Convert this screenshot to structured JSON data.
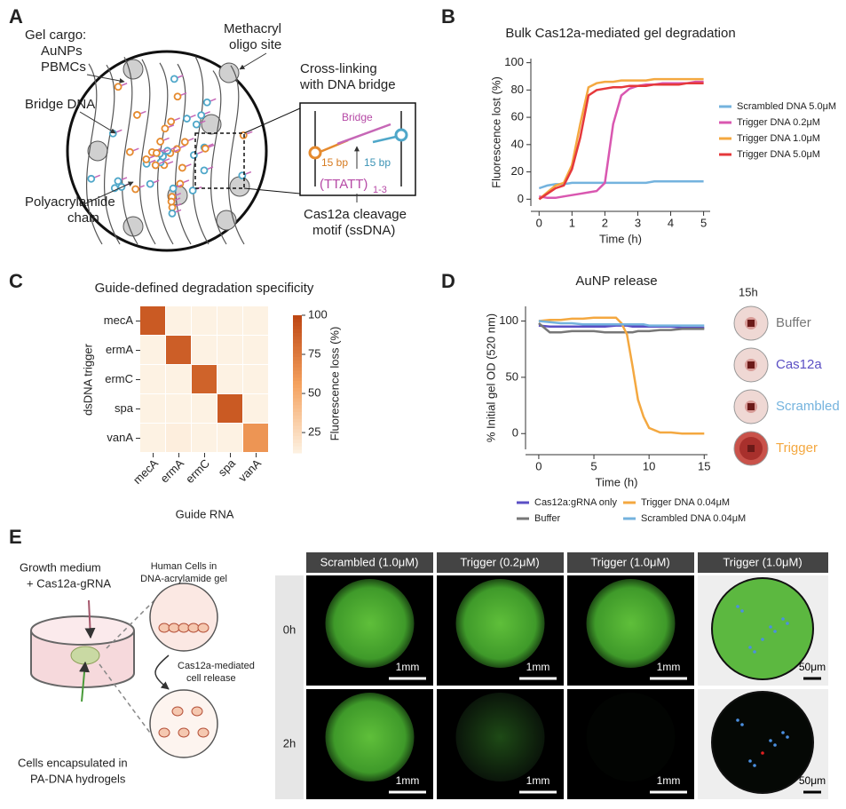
{
  "panel_labels": [
    "A",
    "B",
    "C",
    "D",
    "E"
  ],
  "panel_a": {
    "gel_cargo": [
      "Gel cargo:",
      "AuNPs",
      "PBMCs"
    ],
    "methacryl": [
      "Methacryl",
      "oligo site"
    ],
    "bridge_dna": "Bridge DNA",
    "chain": [
      "Polyacrylamide",
      "chain"
    ],
    "inset_title": [
      "Cross-linking",
      "with DNA bridge"
    ],
    "bridge": "Bridge",
    "bp_left": "15 bp",
    "bp_right": "15 bp",
    "motif": "(TTATT)",
    "motif_sub": "1-3",
    "cleavage": [
      "Cas12a cleavage",
      "motif (ssDNA)"
    ]
  },
  "chart_data": [
    {
      "type": "line",
      "title": "Bulk Cas12a-mediated gel degradation",
      "xlabel": "Time (h)",
      "ylabel": "Fluorescence lost (%)",
      "x": [
        0,
        0.25,
        0.5,
        0.75,
        1,
        1.25,
        1.5,
        1.75,
        2,
        2.25,
        2.5,
        2.75,
        3,
        3.25,
        3.5,
        3.75,
        4,
        4.25,
        4.5,
        4.75,
        5
      ],
      "xlim": [
        -0.25,
        5.2
      ],
      "xticks": [
        0,
        1,
        2,
        3,
        4,
        5
      ],
      "ylim": [
        -5,
        103
      ],
      "yticks": [
        0,
        20,
        40,
        60,
        80,
        100
      ],
      "legend": "right",
      "series": [
        {
          "name": "Scrambled DNA 5.0μM",
          "color": "#74b3de",
          "values": [
            8,
            10,
            11,
            11,
            12,
            12,
            12,
            12,
            12,
            12,
            12,
            12,
            12,
            12,
            13,
            13,
            13,
            13,
            13,
            13,
            13
          ]
        },
        {
          "name": "Trigger DNA 0.2μM",
          "color": "#d957b0",
          "values": [
            2,
            1,
            1,
            2,
            3,
            4,
            5,
            6,
            12,
            55,
            76,
            81,
            83,
            84,
            84,
            85,
            85,
            85,
            85,
            86,
            86
          ]
        },
        {
          "name": "Trigger DNA 1.0μM",
          "color": "#f4a840",
          "values": [
            0,
            5,
            10,
            12,
            25,
            55,
            82,
            85,
            86,
            86,
            87,
            87,
            87,
            87,
            88,
            88,
            88,
            88,
            88,
            88,
            88
          ]
        },
        {
          "name": "Trigger DNA 5.0μM",
          "color": "#e5383b",
          "values": [
            0,
            4,
            8,
            10,
            22,
            45,
            76,
            80,
            81,
            82,
            82,
            83,
            83,
            83,
            84,
            84,
            84,
            84,
            85,
            85,
            85
          ]
        }
      ]
    },
    {
      "type": "heatmap",
      "title": "Guide-defined degradation specificity",
      "xlabel": "Guide RNA",
      "ylabel": "dsDNA trigger",
      "colorbar_label": "Fluorescence loss (%)",
      "x_categories": [
        "mecA",
        "ermA",
        "ermC",
        "spa",
        "vanA"
      ],
      "y_categories": [
        "mecA",
        "ermA",
        "ermC",
        "spa",
        "vanA"
      ],
      "values": [
        [
          90,
          8,
          6,
          6,
          8
        ],
        [
          8,
          88,
          8,
          6,
          8
        ],
        [
          6,
          8,
          86,
          8,
          8
        ],
        [
          8,
          12,
          10,
          90,
          10
        ],
        [
          8,
          14,
          10,
          10,
          62
        ]
      ],
      "clim": [
        12,
        100
      ],
      "cticks": [
        25,
        50,
        75,
        100
      ],
      "colors": [
        "#fdf2e3",
        "#f5a25e",
        "#bd4512"
      ]
    },
    {
      "type": "line",
      "title": "AuNP release",
      "xlabel": "Time (h)",
      "ylabel": "% Initial gel OD (520 nm)",
      "x": [
        0,
        1,
        2,
        3,
        4,
        5,
        6,
        7,
        7.5,
        8,
        8.5,
        9,
        9.5,
        10,
        11,
        12,
        13,
        14,
        15
      ],
      "xlim": [
        -1.2,
        15.3
      ],
      "xticks": [
        0,
        5,
        10,
        15
      ],
      "ylim": [
        -14,
        113
      ],
      "yticks": [
        0,
        50,
        100
      ],
      "legend": "bottom",
      "series": [
        {
          "name": "Cas12a:gRNA only",
          "color": "#5b4fc4",
          "values": [
            96,
            95,
            95,
            95,
            95,
            95,
            95,
            96,
            96,
            96,
            95,
            95,
            95,
            95,
            95,
            95,
            94,
            94,
            94
          ]
        },
        {
          "name": "Buffer",
          "color": "#777777",
          "values": [
            98,
            90,
            90,
            91,
            91,
            91,
            90,
            90,
            90,
            90,
            90,
            91,
            91,
            91,
            92,
            92,
            93,
            93,
            93
          ]
        },
        {
          "name": "Trigger DNA 0.04μM",
          "color": "#f4a840",
          "values": [
            100,
            101,
            101,
            102,
            102,
            103,
            103,
            103,
            98,
            88,
            60,
            30,
            15,
            5,
            1,
            1,
            0,
            0,
            0
          ]
        },
        {
          "name": "Scrambled DNA 0.04μM",
          "color": "#74b3de",
          "values": [
            100,
            99,
            98,
            98,
            97,
            97,
            97,
            97,
            97,
            97,
            97,
            97,
            97,
            96,
            96,
            96,
            96,
            96,
            96
          ]
        }
      ]
    }
  ],
  "panel_d_images": {
    "time": "15h",
    "labels": [
      "Buffer",
      "Cas12a",
      "Scrambled",
      "Trigger"
    ],
    "colors": [
      "#777777",
      "#5b4fc4",
      "#74b3de",
      "#f4a840"
    ]
  },
  "panel_e": {
    "medium": [
      "Growth medium",
      "+ Cas12a-gRNA"
    ],
    "cells_in_gel": [
      "Human Cells in",
      "DNA-acrylamide gel"
    ],
    "release": [
      "Cas12a-mediated",
      "cell release"
    ],
    "encapsulated": [
      "Cells encapsulated in",
      "PA-DNA hydrogels"
    ],
    "columns": [
      "Scrambled (1.0μM)",
      "Trigger (0.2μM)",
      "Trigger (1.0μM)",
      "Trigger (1.0μM)"
    ],
    "rows": [
      "0h",
      "2h"
    ],
    "scale_bars": [
      [
        "1mm",
        "1mm",
        "1mm",
        "50μm"
      ],
      [
        "1mm",
        "1mm",
        "1mm",
        "50μm"
      ]
    ]
  }
}
